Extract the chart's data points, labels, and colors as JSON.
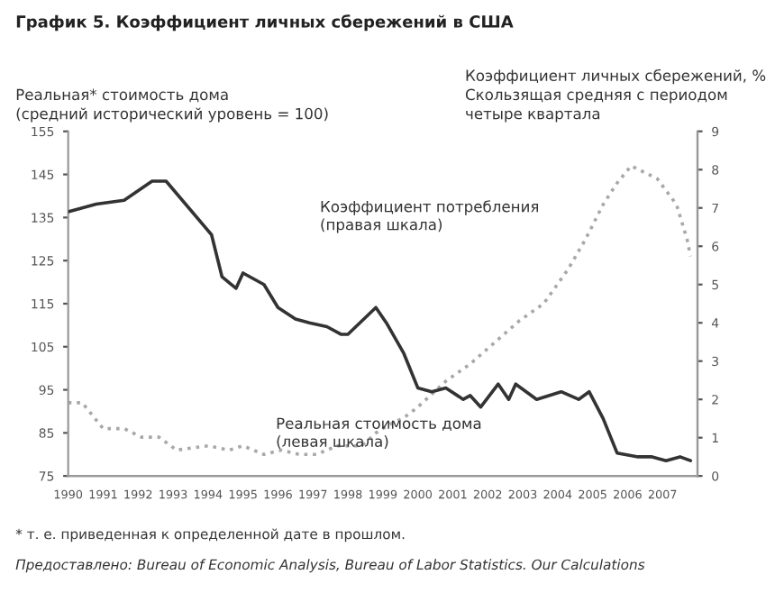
{
  "chart_data": {
    "type": "line",
    "title": "График 5. Коэффициент личных сбережений в США",
    "ylabel": "Реальная* стоимость дома\n(средний исторический уровень = 100)",
    "y2label": "Коэффициент личных сбережений, %\nСкользящая средняя с периодом\nчетыре квартала",
    "annotations": [
      "Коэффициент потребления\n(правая шкала)",
      "Реальная стоимость дома\n(левая шкала)",
      "* т. е. приведенная к определенной дате в прошлом.",
      "Предоставлено: Bureau of Economic Analysis, Bureau of Labor Statistics. Our Calculations"
    ],
    "series": [
      {
        "axis": "y2",
        "color": "#333333",
        "line_style": "solid",
        "x": [
          1990.0,
          1990.8,
          1991.6,
          1992.4,
          1992.8,
          1994.1,
          1994.4,
          1994.8,
          1995.0,
          1995.6,
          1996.0,
          1996.5,
          1996.9,
          1997.4,
          1997.8,
          1998.0,
          1998.8,
          1999.1,
          1999.6,
          2000.0,
          2000.4,
          2000.8,
          2001.3,
          2001.5,
          2001.8,
          2002.3,
          2002.6,
          2002.8,
          2003.4,
          2004.1,
          2004.6,
          2004.9,
          2005.3,
          2005.7,
          2006.3,
          2006.7,
          2007.1,
          2007.5,
          2007.8
        ],
        "values": [
          6.9,
          7.1,
          7.2,
          7.7,
          7.7,
          6.3,
          5.2,
          4.9,
          5.3,
          5.0,
          4.4,
          4.1,
          4.0,
          3.9,
          3.7,
          3.7,
          4.4,
          4.0,
          3.2,
          2.3,
          2.2,
          2.3,
          2.0,
          2.1,
          1.8,
          2.4,
          2.0,
          2.4,
          2.0,
          2.2,
          2.0,
          2.2,
          1.5,
          0.6,
          0.5,
          0.5,
          0.4,
          0.5,
          0.4
        ]
      },
      {
        "axis": "y",
        "color": "#a8a8a8",
        "line_style": "dotted",
        "x": [
          1990.0,
          1990.4,
          1991.0,
          1991.6,
          1992.1,
          1992.6,
          1993.1,
          1994.0,
          1994.6,
          1995.0,
          1995.6,
          1996.1,
          1996.6,
          1997.1,
          1997.7,
          1998.4,
          1998.8,
          1999.2,
          1999.6,
          2000.0,
          2000.8,
          2001.5,
          2002.2,
          2002.9,
          2003.6,
          2004.3,
          2004.8,
          2005.3,
          2005.7,
          2006.1,
          2006.85,
          2007.4,
          2007.7,
          2007.8
        ],
        "values": [
          92,
          92,
          86,
          86,
          84,
          84,
          81,
          82,
          81,
          82,
          80,
          81,
          80,
          80,
          82,
          82,
          85,
          87,
          88.5,
          91,
          97,
          101,
          106,
          111,
          115,
          123,
          130,
          138,
          143,
          147,
          144,
          138,
          130,
          126
        ]
      }
    ],
    "xlim": [
      1990,
      2008
    ],
    "xticks": [
      1990,
      1991,
      1992,
      1993,
      1994,
      1995,
      1996,
      1997,
      1998,
      1999,
      2000,
      2001,
      2002,
      2003,
      2004,
      2005,
      2006,
      2007
    ],
    "ylim": [
      75,
      155
    ],
    "yticks": [
      75,
      85,
      95,
      105,
      115,
      125,
      135,
      145,
      155
    ],
    "y2lim": [
      0,
      9
    ],
    "y2ticks": [
      0,
      1,
      2,
      3,
      4,
      5,
      6,
      7,
      8,
      9
    ],
    "grid": false,
    "legend": false
  }
}
